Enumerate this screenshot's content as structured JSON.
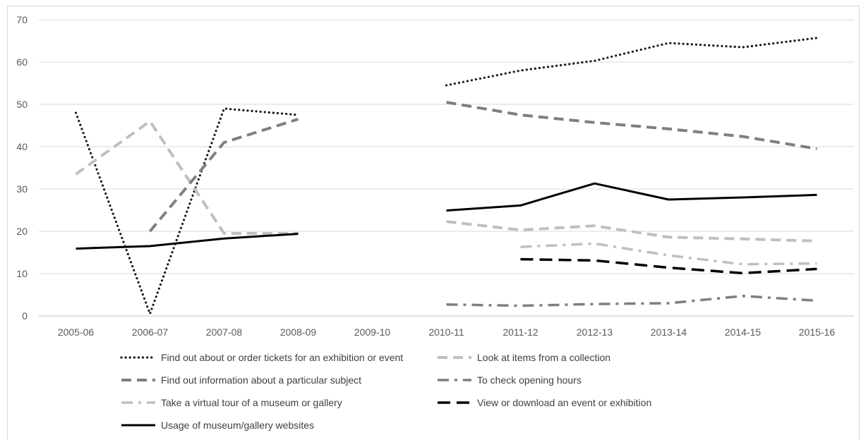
{
  "chart_data": {
    "type": "line",
    "title": "",
    "xlabel": "",
    "ylabel": "",
    "ylim": [
      0,
      70
    ],
    "yticks": [
      0,
      10,
      20,
      30,
      40,
      50,
      60,
      70
    ],
    "grid": true,
    "legend_position": "bottom",
    "categories": [
      "2005-06",
      "2006-07",
      "2007-08",
      "2008-09",
      "2009-10",
      "2010-11",
      "2011-12",
      "2012-13",
      "2013-14",
      "2014-15",
      "2015-16"
    ],
    "series": [
      {
        "name": "Find out about or order tickets for an exhibition or event",
        "style": "dotted",
        "color": "#1a1a1a",
        "values": [
          48,
          0.5,
          49,
          47.5,
          null,
          54.5,
          58,
          60.3,
          64.5,
          63.5,
          65.7
        ]
      },
      {
        "name": "Look at items from a collection",
        "style": "dashed",
        "color": "#bfbfbf",
        "values": [
          33.5,
          46,
          19.5,
          19.5,
          null,
          22.3,
          20.3,
          21.3,
          18.6,
          18.2,
          17.7
        ]
      },
      {
        "name": "Find out information about a particular subject",
        "style": "dashed",
        "color": "#7f7f7f",
        "values": [
          null,
          20,
          41,
          46.5,
          null,
          50.5,
          47.5,
          45.7,
          44.2,
          42.4,
          39.5
        ]
      },
      {
        "name": "To check opening hours",
        "style": "dashdot",
        "color": "#7f7f7f",
        "values": [
          null,
          null,
          null,
          null,
          null,
          2.7,
          2.4,
          2.8,
          3.0,
          4.7,
          3.6
        ]
      },
      {
        "name": "Take a virtual tour of a museum or gallery",
        "style": "dashdot",
        "color": "#bfbfbf",
        "values": [
          null,
          null,
          null,
          null,
          null,
          null,
          16.3,
          17.1,
          14.3,
          12.2,
          12.4
        ]
      },
      {
        "name": "View or download an event or exhibition",
        "style": "longdash",
        "color": "#000000",
        "values": [
          null,
          null,
          null,
          null,
          null,
          null,
          13.4,
          13.1,
          11.4,
          10.1,
          11.1
        ]
      },
      {
        "name": "Usage of museum/gallery websites",
        "style": "solid",
        "color": "#000000",
        "values": [
          15.9,
          16.5,
          18.3,
          19.4,
          null,
          24.9,
          26.1,
          31.3,
          27.5,
          28.0,
          28.6
        ]
      }
    ]
  }
}
